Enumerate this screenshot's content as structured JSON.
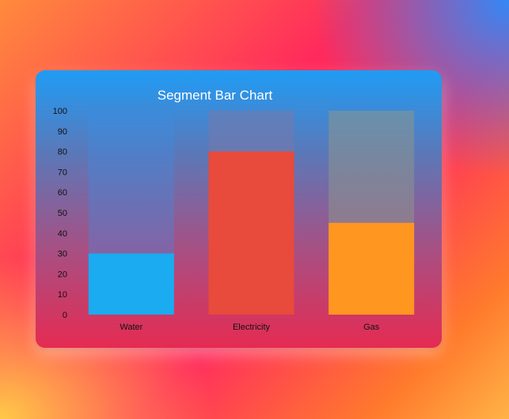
{
  "chart_data": {
    "type": "bar",
    "title": "Segment Bar Chart",
    "categories": [
      "Water",
      "Electricity",
      "Gas"
    ],
    "values": [
      30,
      80,
      45
    ],
    "max": 100,
    "ylim": [
      0,
      100
    ],
    "yticks": [
      "0",
      "10",
      "20",
      "30",
      "40",
      "50",
      "60",
      "70",
      "80",
      "90",
      "100"
    ],
    "colors": [
      "#1aabf0",
      "#e84a3b",
      "#ff9620"
    ],
    "track_colors": [
      "rgba(60,140,230,0.35)",
      "rgba(120,120,170,0.55)",
      "rgba(140,150,140,0.55)"
    ],
    "grid": false,
    "legend": "none"
  }
}
